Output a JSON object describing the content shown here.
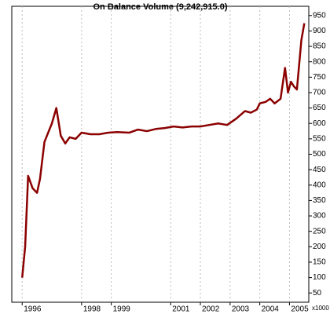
{
  "chart_data": {
    "type": "line",
    "title": "On Balance Volume (9,242,915.0)",
    "y_unit": "x1000",
    "x": [
      1996.0,
      1996.1,
      1996.2,
      1996.35,
      1996.5,
      1996.6,
      1996.75,
      1997.0,
      1997.15,
      1997.3,
      1997.45,
      1997.6,
      1997.8,
      1998.0,
      1998.3,
      1998.6,
      1998.9,
      1999.2,
      1999.6,
      1999.9,
      2000.2,
      2000.5,
      2000.8,
      2001.1,
      2001.4,
      2001.7,
      2002.0,
      2002.3,
      2002.6,
      2002.9,
      2003.2,
      2003.5,
      2003.7,
      2003.9,
      2004.0,
      2004.2,
      2004.35,
      2004.5,
      2004.7,
      2004.85,
      2004.95,
      2005.05,
      2005.15,
      2005.25,
      2005.4,
      2005.5
    ],
    "series": [
      {
        "name": "On Balance Volume",
        "color": "#8b0000",
        "values": [
          100,
          200,
          430,
          390,
          375,
          420,
          540,
          600,
          650,
          560,
          535,
          555,
          550,
          570,
          565,
          565,
          570,
          572,
          570,
          580,
          575,
          582,
          585,
          590,
          587,
          590,
          590,
          595,
          600,
          595,
          615,
          640,
          635,
          645,
          665,
          670,
          680,
          665,
          680,
          780,
          700,
          735,
          720,
          710,
          870,
          925
        ]
      }
    ],
    "xlim": [
      1995.65,
      2005.65
    ],
    "xticks": [
      1996,
      1998,
      1999,
      2001,
      2002,
      2003,
      2004,
      2005
    ],
    "ylim": [
      20,
      980
    ],
    "yticks": [
      50,
      100,
      150,
      200,
      250,
      300,
      350,
      400,
      450,
      500,
      550,
      600,
      650,
      700,
      750,
      800,
      850,
      900,
      950
    ],
    "grid": true
  }
}
